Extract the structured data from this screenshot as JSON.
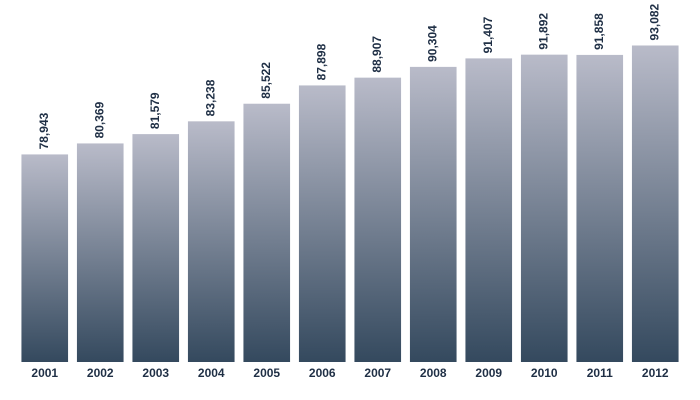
{
  "chart_data": {
    "type": "bar",
    "categories": [
      "2001",
      "2002",
      "2003",
      "2004",
      "2005",
      "2006",
      "2007",
      "2008",
      "2009",
      "2010",
      "2011",
      "2012"
    ],
    "values": [
      78943,
      80369,
      81579,
      83238,
      85522,
      87898,
      88907,
      90304,
      91407,
      91892,
      91858,
      93082
    ],
    "value_labels": [
      "78,943",
      "80,369",
      "81,579",
      "83,238",
      "85,522",
      "87,898",
      "88,907",
      "90,304",
      "91,407",
      "91,892",
      "91,858",
      "93,082"
    ],
    "color": "#34495e",
    "ylim": [
      52000,
      96000
    ]
  }
}
